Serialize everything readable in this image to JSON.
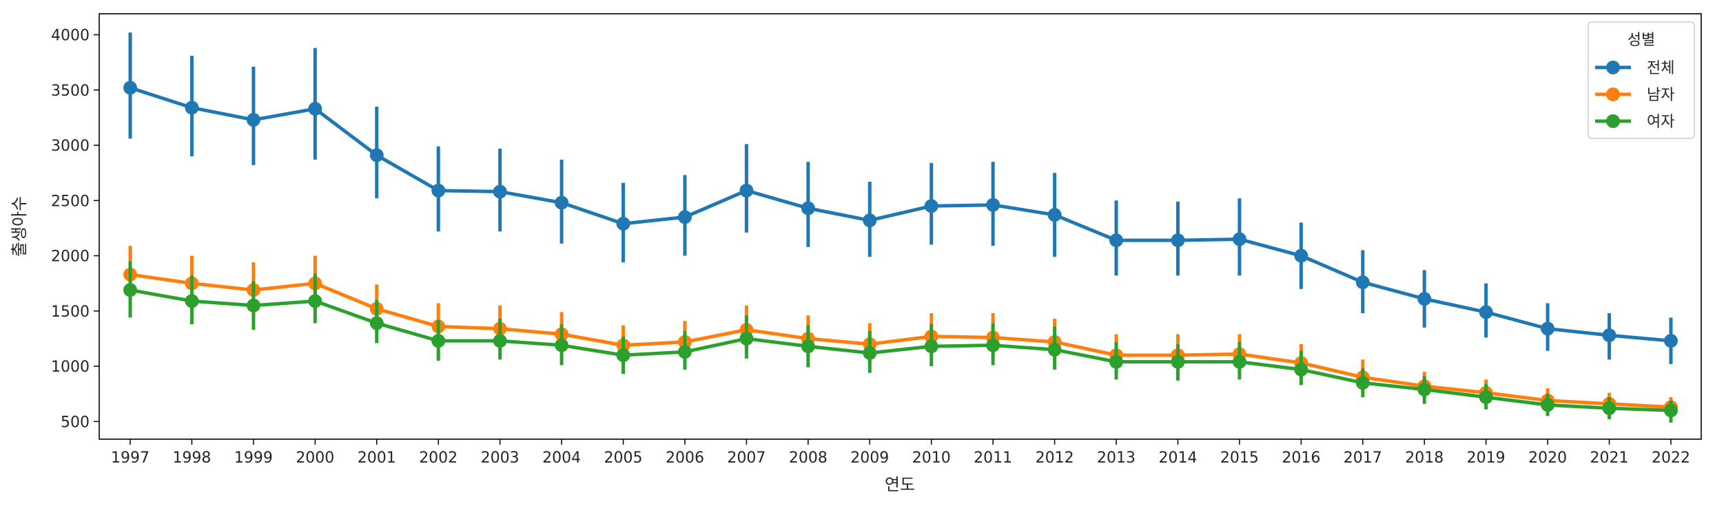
{
  "chart_data": {
    "type": "line",
    "xlabel": "연도",
    "ylabel": "출생아수",
    "categories": [
      "1997",
      "1998",
      "1999",
      "2000",
      "2001",
      "2002",
      "2003",
      "2004",
      "2005",
      "2006",
      "2007",
      "2008",
      "2009",
      "2010",
      "2011",
      "2012",
      "2013",
      "2014",
      "2015",
      "2016",
      "2017",
      "2018",
      "2019",
      "2020",
      "2021",
      "2022"
    ],
    "yticks": [
      500,
      1000,
      1500,
      2000,
      2500,
      3000,
      3500,
      4000
    ],
    "ylim": [
      340,
      4190
    ],
    "grid": false,
    "legend": {
      "title": "성별",
      "position": "top-right"
    },
    "series": [
      {
        "name": "전체",
        "color": "#1f77b4",
        "values": [
          3520,
          3340,
          3230,
          3330,
          2910,
          2590,
          2580,
          2480,
          2290,
          2350,
          2590,
          2430,
          2320,
          2450,
          2460,
          2370,
          2140,
          2140,
          2150,
          2000,
          1760,
          1610,
          1490,
          1340,
          1280,
          1230
        ],
        "err_low": [
          3060,
          2900,
          2820,
          2870,
          2520,
          2220,
          2220,
          2110,
          1940,
          2000,
          2210,
          2080,
          1990,
          2100,
          2090,
          1990,
          1820,
          1820,
          1820,
          1700,
          1480,
          1350,
          1260,
          1140,
          1060,
          1020
        ],
        "err_high": [
          4020,
          3810,
          3710,
          3880,
          3350,
          2990,
          2970,
          2870,
          2660,
          2730,
          3010,
          2850,
          2670,
          2840,
          2850,
          2750,
          2500,
          2490,
          2520,
          2300,
          2050,
          1870,
          1750,
          1570,
          1480,
          1440
        ]
      },
      {
        "name": "남자",
        "color": "#ff7f0e",
        "values": [
          1830,
          1750,
          1690,
          1750,
          1520,
          1360,
          1340,
          1290,
          1190,
          1220,
          1330,
          1250,
          1200,
          1270,
          1260,
          1220,
          1100,
          1100,
          1110,
          1030,
          900,
          820,
          760,
          690,
          660,
          630
        ],
        "err_low": [
          1560,
          1500,
          1450,
          1510,
          1320,
          1170,
          1160,
          1110,
          1020,
          1050,
          1150,
          1080,
          1040,
          1100,
          1090,
          1050,
          950,
          950,
          960,
          890,
          780,
          710,
          660,
          600,
          570,
          540
        ],
        "err_high": [
          2090,
          2000,
          1940,
          2000,
          1740,
          1570,
          1550,
          1490,
          1370,
          1410,
          1550,
          1460,
          1390,
          1480,
          1480,
          1430,
          1290,
          1290,
          1290,
          1200,
          1060,
          950,
          880,
          800,
          760,
          720
        ]
      },
      {
        "name": "여자",
        "color": "#2ca02c",
        "values": [
          1690,
          1590,
          1550,
          1590,
          1390,
          1230,
          1230,
          1190,
          1100,
          1130,
          1250,
          1180,
          1120,
          1180,
          1190,
          1150,
          1040,
          1040,
          1040,
          970,
          850,
          790,
          720,
          650,
          620,
          600
        ],
        "err_low": [
          1440,
          1380,
          1330,
          1390,
          1210,
          1050,
          1060,
          1010,
          930,
          970,
          1070,
          990,
          940,
          1000,
          1010,
          970,
          880,
          870,
          880,
          830,
          720,
          660,
          610,
          550,
          520,
          490
        ],
        "err_high": [
          1950,
          1820,
          1770,
          1840,
          1600,
          1420,
          1430,
          1380,
          1270,
          1320,
          1460,
          1370,
          1320,
          1380,
          1390,
          1360,
          1220,
          1200,
          1220,
          1140,
          980,
          910,
          840,
          750,
          720,
          690
        ]
      }
    ]
  }
}
